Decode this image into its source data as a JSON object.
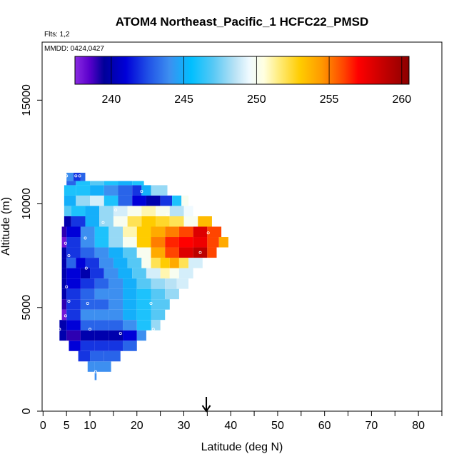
{
  "chart_data": {
    "type": "heatmap",
    "title": "ATOM4 Northeast_Pacific_1 HCFC22_PMSD",
    "flights_note": "Flts: 1,2",
    "dates_note": "MMDD: 0424,0427",
    "xlabel": "Latitude (deg N)",
    "ylabel": "Altitude (m)",
    "xlim": [
      -0.2,
      85
    ],
    "ylim": [
      0,
      17800
    ],
    "x_ticks": [
      0,
      5,
      10,
      20,
      30,
      40,
      50,
      60,
      70,
      80
    ],
    "x_minor_ticks": [
      15,
      25,
      35,
      45,
      55,
      65,
      75,
      85
    ],
    "y_ticks": [
      0,
      5000,
      10000,
      15000
    ],
    "colorbar": {
      "range": [
        237.5,
        260.5
      ],
      "ticks": [
        240,
        245,
        250,
        255,
        260
      ],
      "stops": [
        {
          "v": 237.5,
          "c": "#8a2be2"
        },
        {
          "v": 238.5,
          "c": "#5a00cc"
        },
        {
          "v": 239.5,
          "c": "#000098"
        },
        {
          "v": 241.0,
          "c": "#0000d8"
        },
        {
          "v": 242.5,
          "c": "#1f4fe6"
        },
        {
          "v": 244.0,
          "c": "#3d8ff0"
        },
        {
          "v": 245.5,
          "c": "#00bfff"
        },
        {
          "v": 247.0,
          "c": "#56c8f5"
        },
        {
          "v": 248.5,
          "c": "#b8e2f5"
        },
        {
          "v": 249.5,
          "c": "#f0faff"
        },
        {
          "v": 250.5,
          "c": "#ffffe0"
        },
        {
          "v": 251.5,
          "c": "#ffed80"
        },
        {
          "v": 253.0,
          "c": "#ffcc00"
        },
        {
          "v": 254.5,
          "c": "#ff9900"
        },
        {
          "v": 256.0,
          "c": "#ff4500"
        },
        {
          "v": 257.0,
          "c": "#ff0000"
        },
        {
          "v": 258.5,
          "c": "#cc0000"
        },
        {
          "v": 260.5,
          "c": "#8b0000"
        }
      ]
    },
    "arrow_latitude": 34.8,
    "rows": [
      {
        "y0": 1500,
        "y1": 1900,
        "cells": [
          [
            11.0,
            11.4,
            244
          ]
        ]
      },
      {
        "y0": 1900,
        "y1": 2400,
        "cells": [
          [
            9.5,
            11.0,
            244
          ],
          [
            11.0,
            14.5,
            244
          ]
        ]
      },
      {
        "y0": 2400,
        "y1": 2900,
        "cells": [
          [
            7.5,
            10.0,
            242
          ],
          [
            10.0,
            13.0,
            243
          ],
          [
            13.0,
            16.5,
            243
          ]
        ]
      },
      {
        "y0": 2900,
        "y1": 3400,
        "cells": [
          [
            5.5,
            8.0,
            241
          ],
          [
            8.0,
            11.0,
            242
          ],
          [
            11.0,
            14.0,
            242
          ],
          [
            14.0,
            17.0,
            242
          ],
          [
            17.0,
            20.0,
            243
          ]
        ]
      },
      {
        "y0": 3400,
        "y1": 3900,
        "cells": [
          [
            3.5,
            5.0,
            240
          ],
          [
            5.0,
            8.0,
            239
          ],
          [
            8.0,
            11.0,
            240
          ],
          [
            11.0,
            14.0,
            240
          ],
          [
            14.0,
            17.0,
            240
          ],
          [
            17.0,
            20.0,
            241
          ],
          [
            20.0,
            22.0,
            244
          ]
        ]
      },
      {
        "y0": 3900,
        "y1": 4400,
        "cells": [
          [
            3.5,
            5.0,
            240
          ],
          [
            5.0,
            8.0,
            241
          ],
          [
            8.0,
            11.0,
            243
          ],
          [
            11.0,
            14.0,
            243
          ],
          [
            14.0,
            17.0,
            243
          ],
          [
            17.0,
            20.0,
            244
          ],
          [
            20.0,
            23.0,
            246
          ],
          [
            23.0,
            25.0,
            248
          ]
        ]
      },
      {
        "y0": 4400,
        "y1": 4900,
        "cells": [
          [
            4.0,
            5.0,
            238
          ],
          [
            5.0,
            8.0,
            242
          ],
          [
            8.0,
            11.0,
            244
          ],
          [
            11.0,
            14.0,
            244
          ],
          [
            14.0,
            17.0,
            244
          ],
          [
            17.0,
            20.0,
            245
          ],
          [
            20.0,
            23.0,
            246
          ],
          [
            23.0,
            26.0,
            247
          ]
        ]
      },
      {
        "y0": 4900,
        "y1": 5400,
        "cells": [
          [
            4.0,
            5.0,
            239
          ],
          [
            5.0,
            8.0,
            242
          ],
          [
            8.0,
            11.0,
            243
          ],
          [
            11.0,
            14.0,
            243
          ],
          [
            14.0,
            17.0,
            244
          ],
          [
            17.0,
            20.0,
            245
          ],
          [
            20.0,
            23.0,
            246
          ],
          [
            23.0,
            27.0,
            247
          ]
        ]
      },
      {
        "y0": 5400,
        "y1": 5900,
        "cells": [
          [
            4.0,
            5.0,
            240
          ],
          [
            5.0,
            8.0,
            242
          ],
          [
            8.0,
            11.0,
            243
          ],
          [
            11.0,
            14.0,
            244
          ],
          [
            14.0,
            17.0,
            244
          ],
          [
            17.0,
            20.0,
            245
          ],
          [
            20.0,
            23.0,
            246
          ],
          [
            23.0,
            26.0,
            247
          ],
          [
            26.0,
            29.0,
            248
          ]
        ]
      },
      {
        "y0": 5900,
        "y1": 6400,
        "cells": [
          [
            4.0,
            5.0,
            240
          ],
          [
            5.0,
            8.0,
            241
          ],
          [
            8.0,
            11.0,
            242
          ],
          [
            11.0,
            14.0,
            243
          ],
          [
            14.0,
            17.0,
            244
          ],
          [
            17.0,
            20.0,
            245
          ],
          [
            20.0,
            23.0,
            247
          ],
          [
            23.0,
            26.0,
            248
          ],
          [
            26.0,
            28.5,
            248.5
          ],
          [
            28.5,
            31.0,
            249
          ]
        ]
      },
      {
        "y0": 6400,
        "y1": 6900,
        "cells": [
          [
            4.0,
            5.0,
            240
          ],
          [
            5.0,
            8.0,
            241
          ],
          [
            8.0,
            10.0,
            240
          ],
          [
            10.0,
            13.0,
            242
          ],
          [
            13.0,
            16.0,
            244
          ],
          [
            16.0,
            19.0,
            245
          ],
          [
            19.0,
            22.0,
            247
          ],
          [
            22.0,
            25.0,
            249
          ],
          [
            25.0,
            27.0,
            251
          ],
          [
            27.0,
            29.0,
            250
          ],
          [
            29.0,
            32.0,
            249
          ]
        ]
      },
      {
        "y0": 6900,
        "y1": 7400,
        "cells": [
          [
            4.0,
            5.0,
            240
          ],
          [
            5.0,
            7.0,
            243
          ],
          [
            7.0,
            9.0,
            241
          ],
          [
            9.0,
            12.0,
            242
          ],
          [
            12.0,
            15.0,
            244
          ],
          [
            15.0,
            18.0,
            245
          ],
          [
            18.0,
            21.0,
            247
          ],
          [
            21.0,
            23.0,
            250
          ],
          [
            23.0,
            25.0,
            252
          ],
          [
            25.0,
            27.0,
            253
          ],
          [
            27.0,
            29.0,
            254
          ],
          [
            29.0,
            31.0,
            252
          ],
          [
            31.0,
            34.0,
            249
          ]
        ]
      },
      {
        "y0": 7400,
        "y1": 7900,
        "cells": [
          [
            4.0,
            5.0,
            240
          ],
          [
            5.0,
            8.0,
            242
          ],
          [
            8.0,
            11.0,
            243
          ],
          [
            11.0,
            14.0,
            244
          ],
          [
            14.0,
            17.0,
            245
          ],
          [
            17.0,
            20.0,
            247
          ],
          [
            20.0,
            23.0,
            250
          ],
          [
            23.0,
            26.0,
            254
          ],
          [
            26.0,
            29.0,
            256
          ],
          [
            29.0,
            32.0,
            258
          ],
          [
            32.0,
            35.0,
            259
          ],
          [
            35.0,
            37.0,
            256
          ]
        ]
      },
      {
        "y0": 7900,
        "y1": 8400,
        "cells": [
          [
            4.0,
            5.0,
            238
          ],
          [
            5.0,
            8.0,
            242
          ],
          [
            8.0,
            11.0,
            244
          ],
          [
            11.0,
            14.0,
            246
          ],
          [
            14.0,
            17.0,
            248
          ],
          [
            17.0,
            20.0,
            250
          ],
          [
            20.0,
            23.0,
            253
          ],
          [
            23.0,
            26.0,
            255
          ],
          [
            26.0,
            29.0,
            256.5
          ],
          [
            29.0,
            32.0,
            257
          ],
          [
            32.0,
            35.0,
            257.5
          ],
          [
            35.0,
            37.5,
            256
          ],
          [
            37.5,
            39.5,
            254
          ]
        ]
      },
      {
        "y0": 8400,
        "y1": 8900,
        "cells": [
          [
            4.0,
            5.0,
            239
          ],
          [
            5.0,
            8.0,
            241
          ],
          [
            8.0,
            11.0,
            244
          ],
          [
            11.0,
            14.0,
            246
          ],
          [
            14.0,
            17.0,
            248
          ],
          [
            17.0,
            20.0,
            251
          ],
          [
            20.0,
            23.0,
            253
          ],
          [
            23.0,
            26.0,
            254
          ],
          [
            26.0,
            29.0,
            255
          ],
          [
            29.0,
            32.0,
            256
          ],
          [
            32.0,
            35.0,
            258
          ],
          [
            35.0,
            38.0,
            256
          ]
        ]
      },
      {
        "y0": 8900,
        "y1": 9400,
        "cells": [
          [
            4.5,
            6.0,
            240
          ],
          [
            6.0,
            9.0,
            242
          ],
          [
            9.0,
            12.0,
            245
          ],
          [
            12.0,
            15.0,
            248
          ],
          [
            15.0,
            18.0,
            250
          ],
          [
            18.0,
            21.0,
            252
          ],
          [
            21.0,
            24.0,
            253
          ],
          [
            24.0,
            27.0,
            252.5
          ],
          [
            27.0,
            30.0,
            252
          ],
          [
            30.0,
            33.0,
            250
          ],
          [
            33.0,
            36.0,
            253.5
          ]
        ]
      },
      {
        "y0": 9400,
        "y1": 9900,
        "cells": [
          [
            4.5,
            6.0,
            247
          ],
          [
            6.0,
            9.0,
            246
          ],
          [
            9.0,
            12.0,
            245
          ],
          [
            12.0,
            15.0,
            248
          ],
          [
            15.0,
            18.0,
            249
          ],
          [
            18.0,
            21.0,
            250
          ],
          [
            21.0,
            24.0,
            251
          ],
          [
            24.0,
            27.0,
            250
          ],
          [
            27.0,
            30.0,
            248.5
          ],
          [
            30.0,
            32.0,
            249.5
          ]
        ]
      },
      {
        "y0": 9900,
        "y1": 10400,
        "cells": [
          [
            4.5,
            7.0,
            245
          ],
          [
            7.0,
            10.0,
            248
          ],
          [
            10.0,
            13.0,
            249
          ],
          [
            13.0,
            16.0,
            246
          ],
          [
            16.0,
            19.0,
            243
          ],
          [
            19.0,
            22.0,
            241
          ],
          [
            22.0,
            25.0,
            240
          ],
          [
            25.0,
            27.5,
            242
          ],
          [
            27.5,
            29.5,
            246
          ],
          [
            29.5,
            31.0,
            250
          ]
        ]
      },
      {
        "y0": 10400,
        "y1": 10900,
        "cells": [
          [
            4.5,
            7.0,
            246
          ],
          [
            7.0,
            10.0,
            246
          ],
          [
            10.0,
            13.0,
            245
          ],
          [
            13.0,
            16.0,
            244
          ],
          [
            16.0,
            19.0,
            243
          ],
          [
            19.0,
            21.0,
            242
          ],
          [
            21.0,
            23.0,
            245
          ],
          [
            23.0,
            26.5,
            248
          ]
        ]
      },
      {
        "y0": 10900,
        "y1": 11100,
        "cells": [
          [
            5.0,
            7.0,
            243
          ],
          [
            7.0,
            10.0,
            246
          ],
          [
            10.0,
            13.0,
            247
          ],
          [
            13.0,
            16.0,
            246
          ],
          [
            16.0,
            19.0,
            245
          ],
          [
            19.0,
            21.5,
            246
          ]
        ]
      },
      {
        "y0": 11100,
        "y1": 11500,
        "cells": [
          [
            5.0,
            6.5,
            244
          ],
          [
            6.5,
            8.0,
            242
          ],
          [
            8.0,
            9.0,
            243
          ]
        ]
      }
    ],
    "sample_points": [
      [
        5.0,
        11350
      ],
      [
        7.0,
        11350
      ],
      [
        7.8,
        11350
      ],
      [
        21.0,
        10600
      ],
      [
        15.5,
        9700
      ],
      [
        26.5,
        9500
      ],
      [
        12.8,
        9100
      ],
      [
        35.2,
        8600
      ],
      [
        9.0,
        8350
      ],
      [
        4.8,
        8100
      ],
      [
        33.5,
        7650
      ],
      [
        9.2,
        6900
      ],
      [
        5.5,
        7500
      ],
      [
        5.0,
        6000
      ],
      [
        5.5,
        5300
      ],
      [
        9.5,
        5200
      ],
      [
        23.0,
        5200
      ],
      [
        4.8,
        4600
      ],
      [
        10.0,
        3950
      ],
      [
        16.5,
        3750
      ],
      [
        23.5,
        3950
      ],
      [
        3.5,
        3950
      ],
      [
        11.2,
        1900
      ]
    ]
  }
}
